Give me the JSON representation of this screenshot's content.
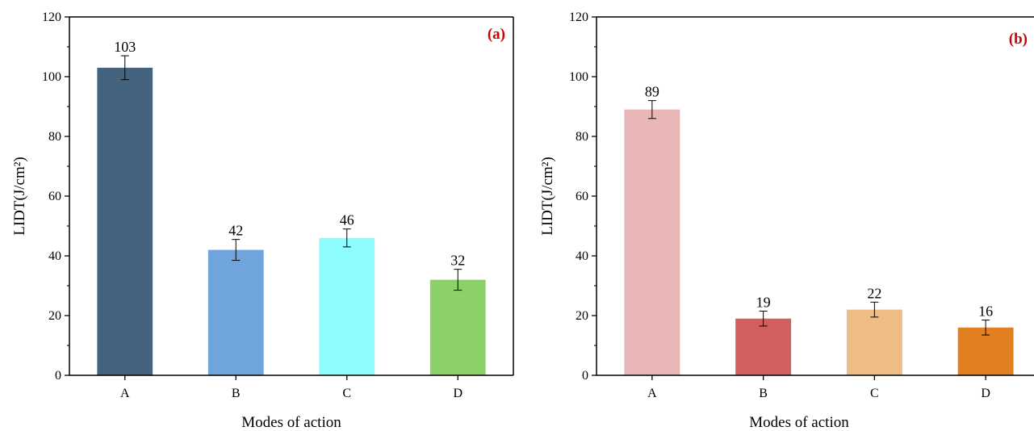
{
  "chart_data": [
    {
      "type": "bar",
      "panel_label": "(a)",
      "categories": [
        "A",
        "B",
        "C",
        "D"
      ],
      "values": [
        103,
        42,
        46,
        32
      ],
      "errors": [
        4,
        3.5,
        3,
        3.5
      ],
      "data_labels": [
        "103",
        "42",
        "46",
        "32"
      ],
      "colors": [
        "#44637f",
        "#6fa4dd",
        "#8dfdfd",
        "#8cd068"
      ],
      "xlabel": "Modes of action",
      "ylabel": "LIDT(J/cm²)",
      "ylim": [
        0,
        120
      ],
      "yticks": [
        0,
        20,
        40,
        60,
        80,
        100,
        120
      ],
      "grid": false
    },
    {
      "type": "bar",
      "panel_label": "(b)",
      "categories": [
        "A",
        "B",
        "C",
        "D"
      ],
      "values": [
        89,
        19,
        22,
        16
      ],
      "errors": [
        3,
        2.5,
        2.5,
        2.5
      ],
      "data_labels": [
        "89",
        "19",
        "22",
        "16"
      ],
      "colors": [
        "#e9b7b7",
        "#d15f5e",
        "#edbd85",
        "#e27f21"
      ],
      "xlabel": "Modes of action",
      "ylabel": "LIDT(J/cm²)",
      "ylim": [
        0,
        120
      ],
      "yticks": [
        0,
        20,
        40,
        60,
        80,
        100,
        120
      ],
      "grid": false
    }
  ]
}
